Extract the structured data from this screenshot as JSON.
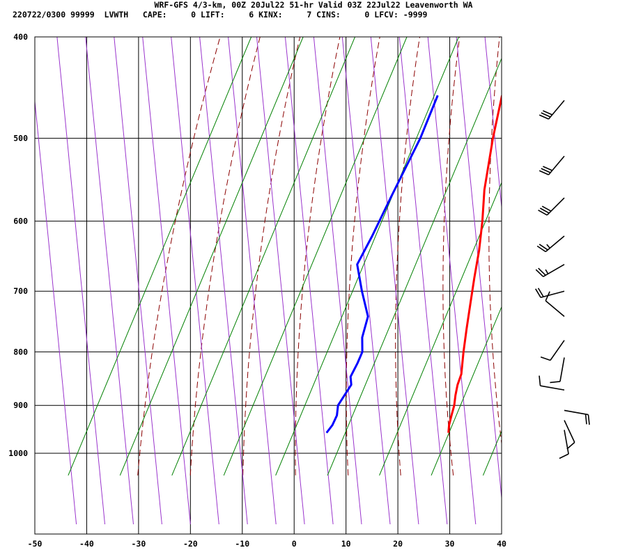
{
  "header": {
    "title": "WRF-GFS 4/3-km, 00Z 20Jul22 51-hr Valid 03Z 22Jul22 Leavenworth WA",
    "stats": "220722/0300 99999  LVWTH   CAPE:     0 LIFT:     6 KINX:     7 CINS:     0 LFCV: -9999"
  },
  "colors": {
    "temperature": "#ff0000",
    "dewpoint": "#0000ff",
    "dry_adiabat": "#8b0000",
    "moist_adiabat": "#9932cc",
    "mixing_ratio": "#008000",
    "grid": "#000000",
    "wind_barb": "#000000"
  },
  "chart_data": {
    "type": "line",
    "title": "",
    "xlabel": "",
    "ylabel": "",
    "x_ticks": [
      -50,
      -40,
      -30,
      -20,
      -10,
      0,
      10,
      20,
      30,
      40
    ],
    "y_ticks": [
      400,
      500,
      600,
      700,
      800,
      900,
      1000
    ],
    "xlim": [
      -50,
      40
    ],
    "ylim": [
      1050,
      400
    ],
    "y_scale": "log",
    "grid": true,
    "skew_t": true,
    "series": [
      {
        "key": "temperature",
        "points": [
          {
            "p": 956,
            "t": 26.0
          },
          {
            "p": 940,
            "t": 24.8
          },
          {
            "p": 920,
            "t": 23.6
          },
          {
            "p": 900,
            "t": 22.4
          },
          {
            "p": 880,
            "t": 20.9
          },
          {
            "p": 860,
            "t": 19.5
          },
          {
            "p": 840,
            "t": 18.4
          },
          {
            "p": 800,
            "t": 15.0
          },
          {
            "p": 760,
            "t": 11.6
          },
          {
            "p": 720,
            "t": 8.1
          },
          {
            "p": 680,
            "t": 4.4
          },
          {
            "p": 640,
            "t": 0.6
          },
          {
            "p": 600,
            "t": -3.8
          },
          {
            "p": 560,
            "t": -8.8
          },
          {
            "p": 520,
            "t": -13.5
          },
          {
            "p": 500,
            "t": -16.0
          },
          {
            "p": 455,
            "t": -21.6
          }
        ]
      },
      {
        "key": "dewpoint",
        "points": [
          {
            "p": 956,
            "t": 2.5
          },
          {
            "p": 940,
            "t": 2.3
          },
          {
            "p": 920,
            "t": 1.5
          },
          {
            "p": 900,
            "t": 0.0
          },
          {
            "p": 860,
            "t": -1.0
          },
          {
            "p": 845,
            "t": -2.5
          },
          {
            "p": 820,
            "t": -3.5
          },
          {
            "p": 800,
            "t": -4.5
          },
          {
            "p": 775,
            "t": -7.0
          },
          {
            "p": 740,
            "t": -9.5
          },
          {
            "p": 700,
            "t": -15.0
          },
          {
            "p": 660,
            "t": -20.5
          },
          {
            "p": 620,
            "t": -22.5
          },
          {
            "p": 570,
            "t": -25.5
          },
          {
            "p": 500,
            "t": -30.0
          },
          {
            "p": 455,
            "t": -34.0
          }
        ]
      }
    ],
    "dry_adiabats_theta_c": [
      -30,
      -20,
      -10,
      0,
      10,
      20,
      30,
      40,
      50,
      60,
      70,
      80,
      90,
      100,
      110,
      120
    ],
    "moist_adiabats_theta_c": [
      -40,
      -30,
      -20,
      -10,
      0,
      10,
      20,
      30,
      40,
      50,
      60,
      70,
      80,
      90,
      100,
      110,
      120,
      130
    ],
    "mixing_ratio_lines_x_at_1000": [
      -40,
      -30,
      -20,
      -10,
      0,
      10,
      20,
      30,
      40,
      50,
      60
    ],
    "wind_barbs": [
      {
        "p": 460,
        "dir": 220,
        "speed": 30
      },
      {
        "p": 520,
        "dir": 220,
        "speed": 30
      },
      {
        "p": 570,
        "dir": 225,
        "speed": 30
      },
      {
        "p": 620,
        "dir": 230,
        "speed": 25
      },
      {
        "p": 660,
        "dir": 240,
        "speed": 25
      },
      {
        "p": 700,
        "dir": 255,
        "speed": 20
      },
      {
        "p": 740,
        "dir": 310,
        "speed": 10
      },
      {
        "p": 780,
        "dir": 215,
        "speed": 10
      },
      {
        "p": 810,
        "dir": 190,
        "speed": 10
      },
      {
        "p": 870,
        "dir": 280,
        "speed": 10
      },
      {
        "p": 910,
        "dir": 100,
        "speed": 20
      },
      {
        "p": 930,
        "dir": 155,
        "speed": 10
      },
      {
        "p": 950,
        "dir": 170,
        "speed": 10
      }
    ]
  }
}
